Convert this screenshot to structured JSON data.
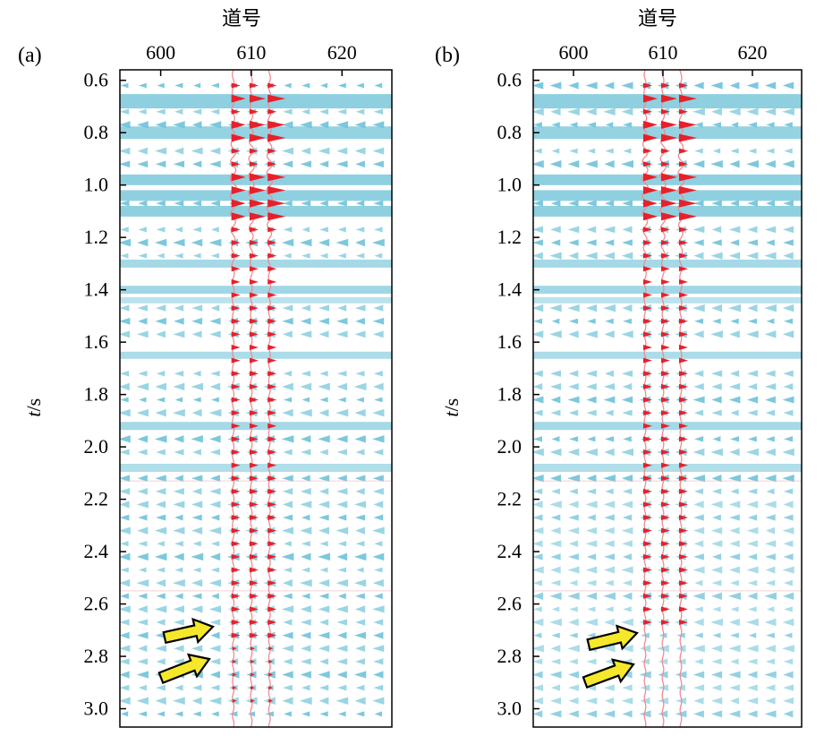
{
  "chart_data": [
    {
      "type": "heatmap",
      "panel_label": "(a)",
      "xlabel": "道号",
      "ylabel_italic": "t",
      "ylabel_rest": "/s",
      "x_ticks": [
        600,
        610,
        620
      ],
      "y_ticks": [
        "0.6",
        "0.8",
        "1.0",
        "1.2",
        "1.4",
        "1.6",
        "1.8",
        "2.0",
        "2.2",
        "2.4",
        "2.6",
        "2.8",
        "3.0"
      ],
      "xlim": [
        595.5,
        625.5
      ],
      "ylim": [
        0.56,
        3.07
      ],
      "highlighted_traces": [
        608,
        610,
        612
      ],
      "strong_reflections_s": [
        0.68,
        0.8,
        0.98,
        1.04,
        1.1,
        1.92,
        2.08
      ],
      "arrows_at_s": [
        2.72,
        2.82
      ],
      "trace_color": "#e8202a",
      "background_color": "#8fd0e0"
    },
    {
      "type": "heatmap",
      "panel_label": "(b)",
      "xlabel": "道号",
      "ylabel_italic": "t",
      "ylabel_rest": "/s",
      "x_ticks": [
        600,
        610,
        620
      ],
      "y_ticks": [
        "0.6",
        "0.8",
        "1.0",
        "1.2",
        "1.4",
        "1.6",
        "1.8",
        "2.0",
        "2.2",
        "2.4",
        "2.6",
        "2.8",
        "3.0"
      ],
      "xlim": [
        595.5,
        625.5
      ],
      "ylim": [
        0.56,
        3.07
      ],
      "highlighted_traces": [
        608,
        610,
        612
      ],
      "strong_reflections_s": [
        0.68,
        0.8,
        0.98,
        1.04,
        1.1,
        1.92,
        2.08
      ],
      "arrows_at_s": [
        2.72,
        2.82
      ],
      "trace_color": "#e8202a",
      "background_color": "#8fd0e0"
    }
  ]
}
